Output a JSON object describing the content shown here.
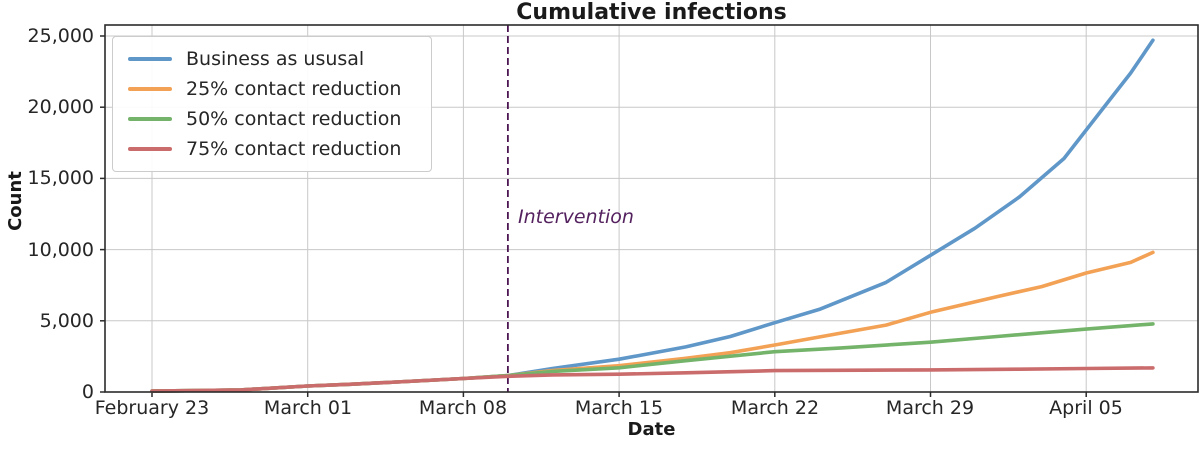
{
  "chart_data": {
    "type": "line",
    "title": "Cumulative infections",
    "xlabel": "Date",
    "ylabel": "Count",
    "grid": true,
    "legend_position": "upper left",
    "ylim": [
      0,
      25770
    ],
    "y_ticks": [
      0,
      5000,
      10000,
      15000,
      20000,
      25000
    ],
    "y_ticklabels": [
      "0",
      "5,000",
      "10,000",
      "15,000",
      "20,000",
      "25,000"
    ],
    "x_tick_days": [
      0,
      7,
      14,
      21,
      28,
      35,
      42
    ],
    "x_ticklabels": [
      "February 23",
      "March 01",
      "March 08",
      "March 15",
      "March 22",
      "March 29",
      "April 05"
    ],
    "x_unit": "days since February 23",
    "annotation": {
      "text": "Intervention",
      "x_day": 16,
      "date": "March 10",
      "text_color": "#552260",
      "line_color": "#4c1653",
      "line_style": "dashed"
    },
    "style": {
      "grid_color": "#c8c8c8",
      "axis_color": "#2b2b2b",
      "background": "#ffffff"
    },
    "series": [
      {
        "name": "Business as ususal",
        "color": "#5f97c9",
        "points": [
          [
            0,
            60
          ],
          [
            2,
            95
          ],
          [
            4,
            150
          ],
          [
            7,
            420
          ],
          [
            9,
            550
          ],
          [
            11,
            700
          ],
          [
            14,
            950
          ],
          [
            16,
            1150
          ],
          [
            18,
            1650
          ],
          [
            21,
            2300
          ],
          [
            24,
            3170
          ],
          [
            26,
            3900
          ],
          [
            28,
            4870
          ],
          [
            30,
            5800
          ],
          [
            33,
            7700
          ],
          [
            35,
            9600
          ],
          [
            37,
            11500
          ],
          [
            39,
            13700
          ],
          [
            41,
            16400
          ],
          [
            42,
            18400
          ],
          [
            43,
            20400
          ],
          [
            44,
            22400
          ],
          [
            45,
            24700
          ]
        ]
      },
      {
        "name": "25% contact reduction",
        "color": "#f2a155",
        "points": [
          [
            0,
            60
          ],
          [
            2,
            95
          ],
          [
            4,
            150
          ],
          [
            7,
            420
          ],
          [
            9,
            550
          ],
          [
            11,
            700
          ],
          [
            14,
            950
          ],
          [
            16,
            1150
          ],
          [
            18,
            1500
          ],
          [
            21,
            1850
          ],
          [
            24,
            2370
          ],
          [
            26,
            2760
          ],
          [
            28,
            3300
          ],
          [
            31,
            4140
          ],
          [
            33,
            4700
          ],
          [
            35,
            5600
          ],
          [
            38,
            6700
          ],
          [
            40,
            7400
          ],
          [
            42,
            8360
          ],
          [
            44,
            9100
          ],
          [
            45,
            9800
          ]
        ]
      },
      {
        "name": "50% contact reduction",
        "color": "#74b36a",
        "points": [
          [
            0,
            60
          ],
          [
            2,
            95
          ],
          [
            4,
            150
          ],
          [
            7,
            420
          ],
          [
            9,
            550
          ],
          [
            11,
            700
          ],
          [
            14,
            950
          ],
          [
            16,
            1150
          ],
          [
            18,
            1450
          ],
          [
            21,
            1700
          ],
          [
            24,
            2200
          ],
          [
            28,
            2830
          ],
          [
            31,
            3100
          ],
          [
            35,
            3500
          ],
          [
            38,
            3900
          ],
          [
            42,
            4420
          ],
          [
            45,
            4780
          ]
        ]
      },
      {
        "name": "75% contact reduction",
        "color": "#cb6c6c",
        "points": [
          [
            0,
            60
          ],
          [
            2,
            95
          ],
          [
            4,
            150
          ],
          [
            7,
            420
          ],
          [
            9,
            550
          ],
          [
            11,
            700
          ],
          [
            14,
            950
          ],
          [
            16,
            1100
          ],
          [
            18,
            1200
          ],
          [
            21,
            1250
          ],
          [
            24,
            1350
          ],
          [
            28,
            1500
          ],
          [
            32,
            1530
          ],
          [
            35,
            1550
          ],
          [
            39,
            1600
          ],
          [
            42,
            1650
          ],
          [
            45,
            1690
          ]
        ]
      }
    ]
  }
}
